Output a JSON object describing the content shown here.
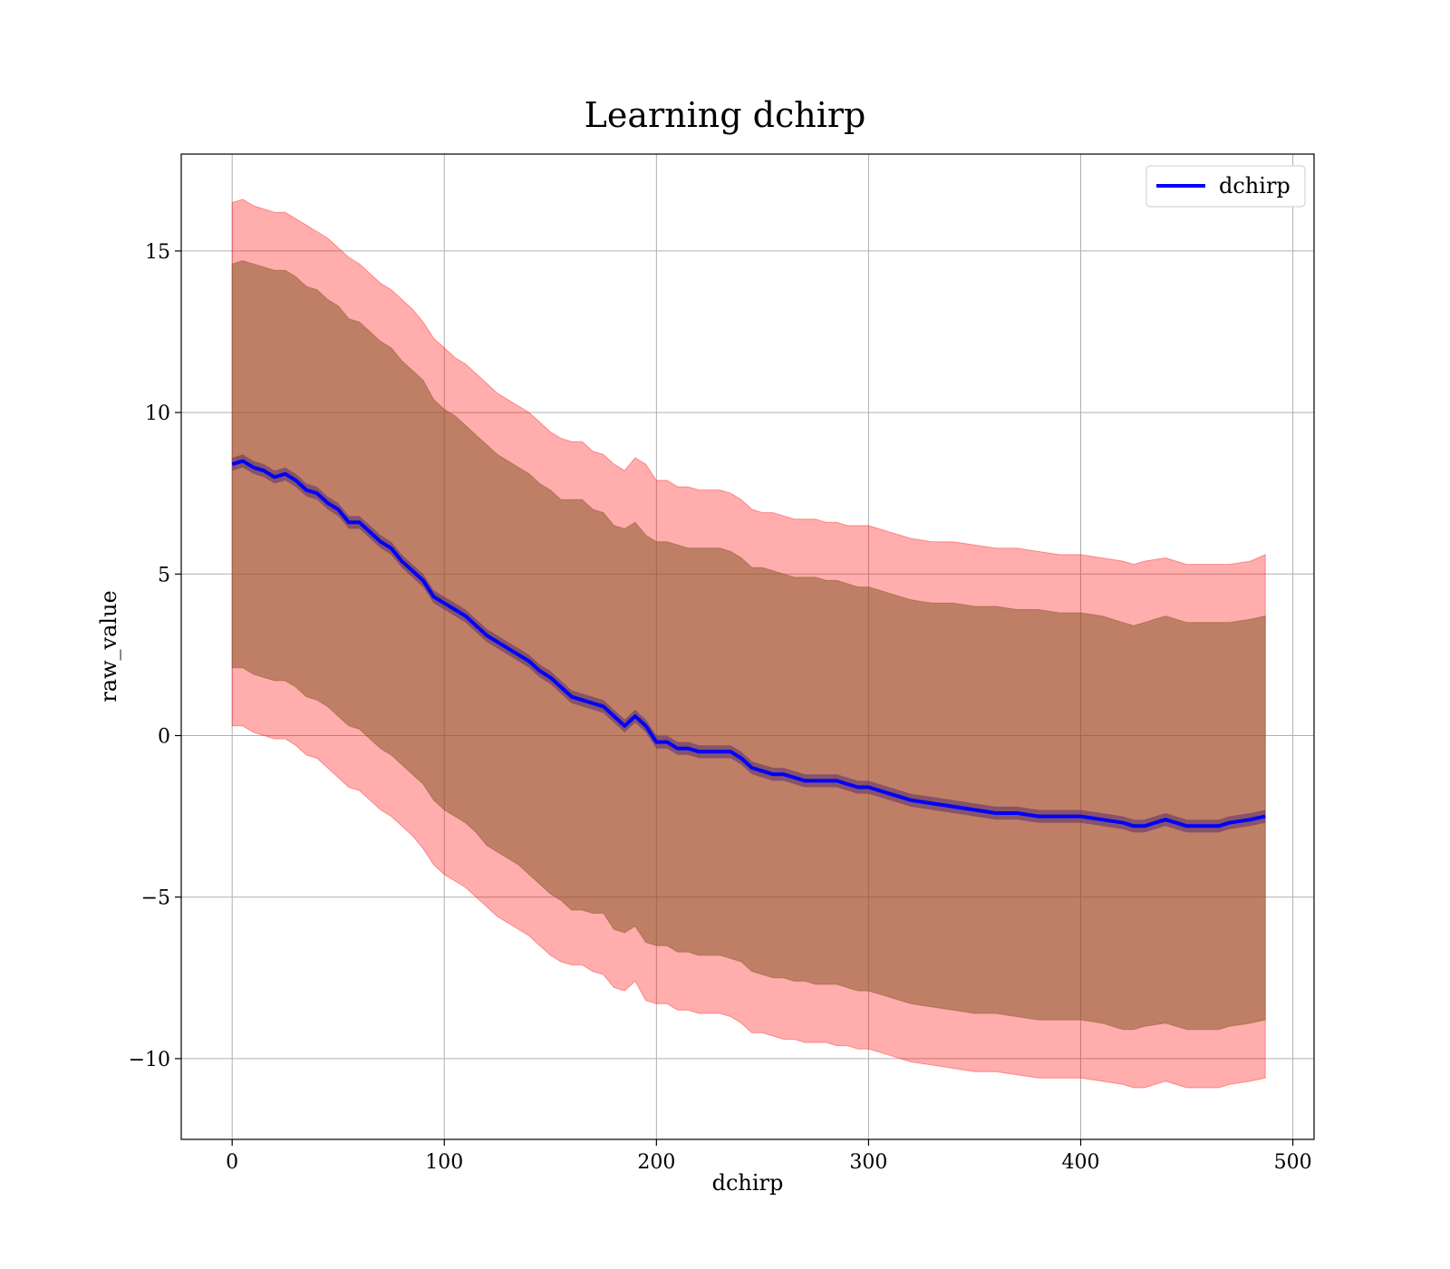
{
  "chart_data": {
    "type": "line",
    "title": "Learning dchirp",
    "xlabel": "dchirp",
    "ylabel": "raw_value",
    "xlim": [
      -24,
      510
    ],
    "ylim": [
      -12.5,
      18
    ],
    "xticks": [
      0,
      100,
      200,
      300,
      400,
      500
    ],
    "yticks": [
      -10,
      -5,
      0,
      5,
      10,
      15
    ],
    "xtick_labels": [
      "0",
      "100",
      "200",
      "300",
      "400",
      "500"
    ],
    "ytick_labels": [
      "−10",
      "−5",
      "0",
      "5",
      "10",
      "15"
    ],
    "grid": true,
    "legend": {
      "position": "top-right",
      "entries": [
        "dchirp"
      ]
    },
    "colors": {
      "line": "#0000ff",
      "outer_band": "#ff000059",
      "inner_band": "#8b5a2b",
      "grid": "#b0b0b0"
    },
    "series": [
      {
        "name": "dchirp",
        "x": [
          0,
          5,
          10,
          15,
          20,
          25,
          30,
          35,
          40,
          45,
          50,
          55,
          60,
          65,
          70,
          75,
          80,
          85,
          90,
          95,
          100,
          105,
          110,
          115,
          120,
          125,
          130,
          135,
          140,
          145,
          150,
          155,
          160,
          165,
          170,
          175,
          180,
          185,
          190,
          195,
          200,
          205,
          210,
          215,
          220,
          225,
          230,
          235,
          240,
          245,
          250,
          255,
          260,
          265,
          270,
          275,
          280,
          285,
          290,
          295,
          300,
          305,
          310,
          315,
          320,
          330,
          340,
          350,
          360,
          370,
          380,
          390,
          400,
          410,
          420,
          425,
          430,
          440,
          445,
          450,
          455,
          460,
          465,
          470,
          480,
          487
        ],
        "y": [
          8.4,
          8.5,
          8.3,
          8.2,
          8.0,
          8.1,
          7.9,
          7.6,
          7.5,
          7.2,
          7.0,
          6.6,
          6.6,
          6.3,
          6.0,
          5.8,
          5.4,
          5.1,
          4.8,
          4.3,
          4.1,
          3.9,
          3.7,
          3.4,
          3.1,
          2.9,
          2.7,
          2.5,
          2.3,
          2.0,
          1.8,
          1.5,
          1.2,
          1.1,
          1.0,
          0.9,
          0.6,
          0.3,
          0.6,
          0.3,
          -0.2,
          -0.2,
          -0.4,
          -0.4,
          -0.5,
          -0.5,
          -0.5,
          -0.5,
          -0.7,
          -1.0,
          -1.1,
          -1.2,
          -1.2,
          -1.3,
          -1.4,
          -1.4,
          -1.4,
          -1.4,
          -1.5,
          -1.6,
          -1.6,
          -1.7,
          -1.8,
          -1.9,
          -2.0,
          -2.1,
          -2.2,
          -2.3,
          -2.4,
          -2.4,
          -2.5,
          -2.5,
          -2.5,
          -2.6,
          -2.7,
          -2.8,
          -2.8,
          -2.6,
          -2.7,
          -2.8,
          -2.8,
          -2.8,
          -2.8,
          -2.7,
          -2.6,
          -2.5
        ],
        "inner_upper": [
          14.6,
          14.7,
          14.6,
          14.5,
          14.4,
          14.4,
          14.2,
          13.9,
          13.8,
          13.5,
          13.3,
          12.9,
          12.8,
          12.5,
          12.2,
          12.0,
          11.6,
          11.3,
          11.0,
          10.4,
          10.1,
          9.9,
          9.6,
          9.3,
          9.0,
          8.7,
          8.5,
          8.3,
          8.1,
          7.8,
          7.6,
          7.3,
          7.3,
          7.3,
          7.0,
          6.9,
          6.5,
          6.4,
          6.6,
          6.2,
          6.0,
          6.0,
          5.9,
          5.8,
          5.8,
          5.8,
          5.8,
          5.7,
          5.5,
          5.2,
          5.2,
          5.1,
          5.0,
          4.9,
          4.9,
          4.9,
          4.8,
          4.8,
          4.7,
          4.6,
          4.6,
          4.5,
          4.4,
          4.3,
          4.2,
          4.1,
          4.1,
          4.0,
          4.0,
          3.9,
          3.9,
          3.8,
          3.8,
          3.7,
          3.5,
          3.4,
          3.5,
          3.7,
          3.6,
          3.5,
          3.5,
          3.5,
          3.5,
          3.5,
          3.6,
          3.7
        ],
        "inner_lower": [
          2.1,
          2.1,
          1.9,
          1.8,
          1.7,
          1.7,
          1.5,
          1.2,
          1.1,
          0.9,
          0.6,
          0.3,
          0.2,
          -0.1,
          -0.4,
          -0.6,
          -0.9,
          -1.2,
          -1.5,
          -2.0,
          -2.3,
          -2.5,
          -2.7,
          -3.0,
          -3.4,
          -3.6,
          -3.8,
          -4.0,
          -4.3,
          -4.6,
          -4.9,
          -5.1,
          -5.4,
          -5.4,
          -5.5,
          -5.5,
          -6.0,
          -6.1,
          -5.9,
          -6.4,
          -6.5,
          -6.5,
          -6.7,
          -6.7,
          -6.8,
          -6.8,
          -6.8,
          -6.9,
          -7.0,
          -7.3,
          -7.4,
          -7.5,
          -7.5,
          -7.6,
          -7.6,
          -7.7,
          -7.7,
          -7.7,
          -7.8,
          -7.9,
          -7.9,
          -8.0,
          -8.1,
          -8.2,
          -8.3,
          -8.4,
          -8.5,
          -8.6,
          -8.6,
          -8.7,
          -8.8,
          -8.8,
          -8.8,
          -8.9,
          -9.1,
          -9.1,
          -9.0,
          -8.9,
          -9.0,
          -9.1,
          -9.1,
          -9.1,
          -9.1,
          -9.0,
          -8.9,
          -8.8
        ],
        "outer_upper": [
          16.5,
          16.6,
          16.4,
          16.3,
          16.2,
          16.2,
          16.0,
          15.8,
          15.6,
          15.4,
          15.1,
          14.8,
          14.6,
          14.3,
          14.0,
          13.8,
          13.5,
          13.2,
          12.8,
          12.3,
          12.0,
          11.7,
          11.5,
          11.2,
          10.9,
          10.6,
          10.4,
          10.2,
          10.0,
          9.7,
          9.4,
          9.2,
          9.1,
          9.1,
          8.8,
          8.7,
          8.4,
          8.2,
          8.6,
          8.4,
          7.9,
          7.9,
          7.7,
          7.7,
          7.6,
          7.6,
          7.6,
          7.5,
          7.3,
          7.0,
          6.9,
          6.9,
          6.8,
          6.7,
          6.7,
          6.7,
          6.6,
          6.6,
          6.5,
          6.5,
          6.5,
          6.4,
          6.3,
          6.2,
          6.1,
          6.0,
          6.0,
          5.9,
          5.8,
          5.8,
          5.7,
          5.6,
          5.6,
          5.5,
          5.4,
          5.3,
          5.4,
          5.5,
          5.4,
          5.3,
          5.3,
          5.3,
          5.3,
          5.3,
          5.4,
          5.6
        ],
        "outer_lower": [
          0.3,
          0.3,
          0.1,
          0.0,
          -0.1,
          -0.1,
          -0.3,
          -0.6,
          -0.7,
          -1.0,
          -1.3,
          -1.6,
          -1.7,
          -2.0,
          -2.3,
          -2.5,
          -2.8,
          -3.1,
          -3.5,
          -4.0,
          -4.3,
          -4.5,
          -4.7,
          -5.0,
          -5.3,
          -5.6,
          -5.8,
          -6.0,
          -6.2,
          -6.5,
          -6.8,
          -7.0,
          -7.1,
          -7.1,
          -7.3,
          -7.4,
          -7.8,
          -7.9,
          -7.6,
          -8.2,
          -8.3,
          -8.3,
          -8.5,
          -8.5,
          -8.6,
          -8.6,
          -8.6,
          -8.7,
          -8.9,
          -9.2,
          -9.2,
          -9.3,
          -9.4,
          -9.4,
          -9.5,
          -9.5,
          -9.5,
          -9.6,
          -9.6,
          -9.7,
          -9.7,
          -9.8,
          -9.9,
          -10.0,
          -10.1,
          -10.2,
          -10.3,
          -10.4,
          -10.4,
          -10.5,
          -10.6,
          -10.6,
          -10.6,
          -10.7,
          -10.8,
          -10.9,
          -10.9,
          -10.7,
          -10.8,
          -10.9,
          -10.9,
          -10.9,
          -10.9,
          -10.8,
          -10.7,
          -10.6
        ]
      }
    ]
  }
}
